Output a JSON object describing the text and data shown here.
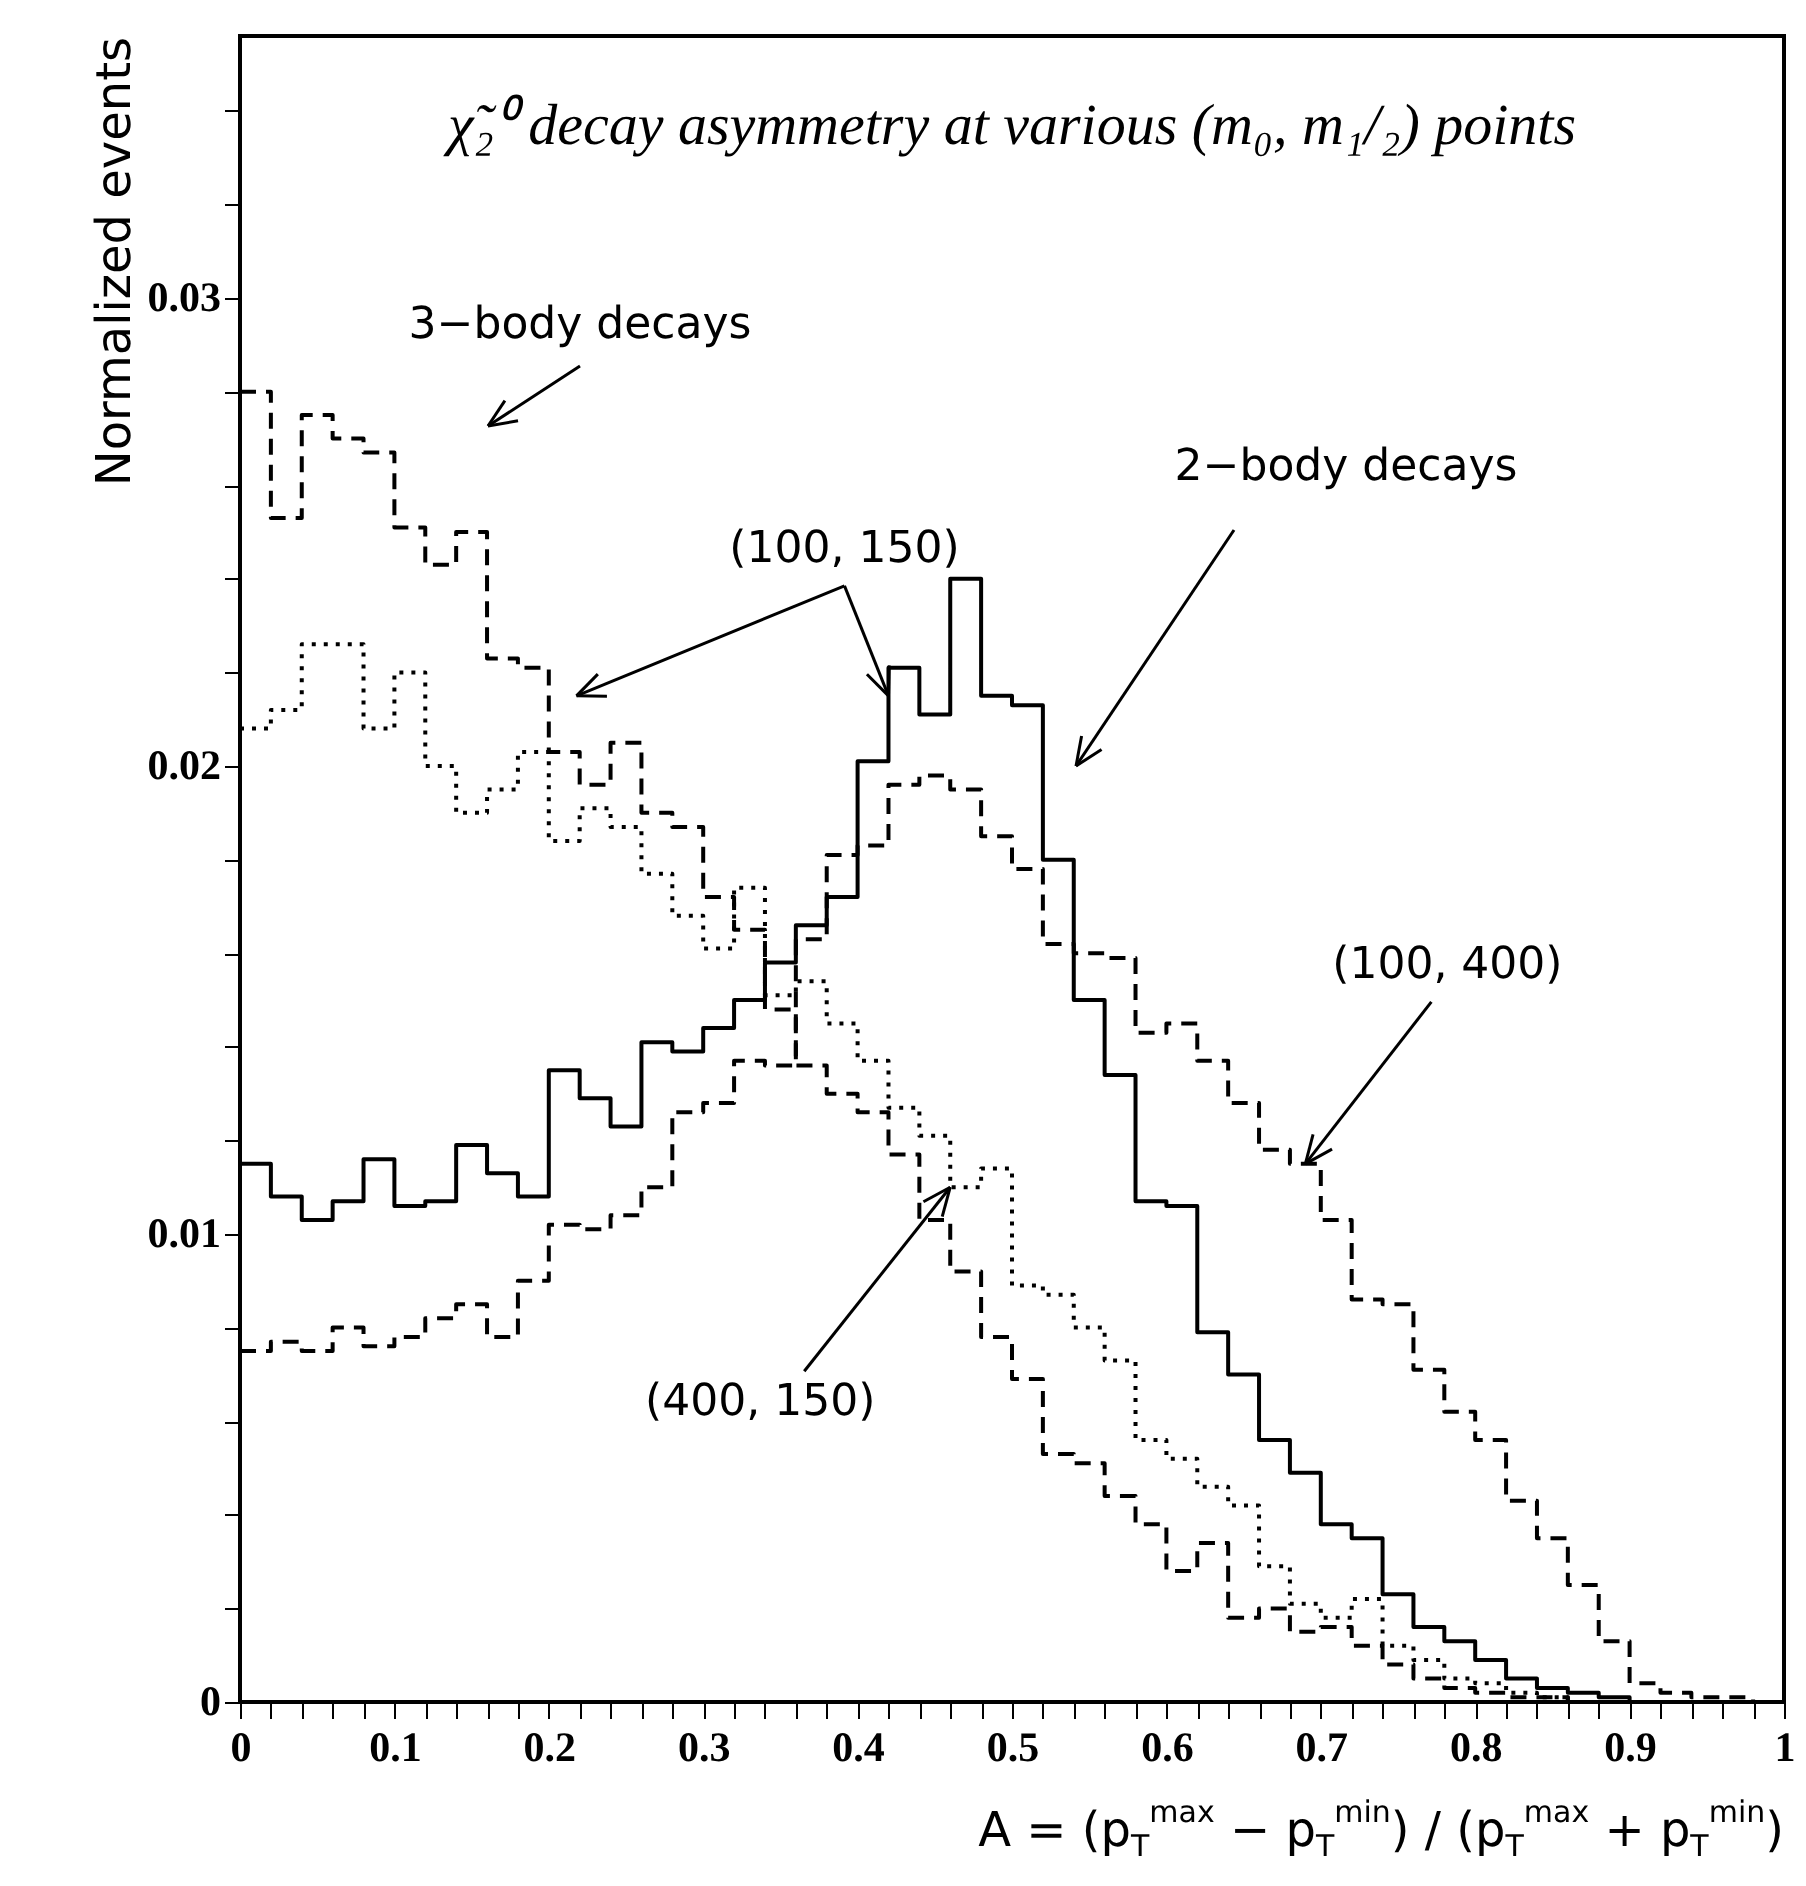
{
  "chart_data": {
    "type": "step",
    "title": "χ̃₂⁰ decay asymmetry at various (m₀, m₁/₂) points",
    "xlabel": "A = (p$_{T}$$^{max}$ − p$_{T}$$^{min}$) / (p$_{T}$$^{max}$ + p$_{T}$$^{min}$)",
    "ylabel": "Normalized events",
    "x": [
      0,
      0.02,
      0.04,
      0.06,
      0.08,
      0.1,
      0.12,
      0.14,
      0.16,
      0.18,
      0.2,
      0.22,
      0.24,
      0.26,
      0.28,
      0.3,
      0.32,
      0.34,
      0.36,
      0.38,
      0.4,
      0.42,
      0.44,
      0.46,
      0.48,
      0.5,
      0.52,
      0.54,
      0.56,
      0.58,
      0.6,
      0.62,
      0.64,
      0.66,
      0.68,
      0.7,
      0.72,
      0.74,
      0.76,
      0.78,
      0.8,
      0.82,
      0.84,
      0.86,
      0.88,
      0.9,
      0.92,
      0.94,
      0.96,
      0.98
    ],
    "series": [
      {
        "color": "#000000",
        "line_style": "solid",
        "values": [
          0.0115,
          0.0108,
          0.0103,
          0.0107,
          0.0116,
          0.0106,
          0.0107,
          0.0119,
          0.0113,
          0.0108,
          0.0135,
          0.0129,
          0.0123,
          0.0141,
          0.0139,
          0.0144,
          0.015,
          0.0158,
          0.0166,
          0.0172,
          0.0201,
          0.0221,
          0.0211,
          0.024,
          0.0215,
          0.0213,
          0.018,
          0.015,
          0.0134,
          0.0107,
          0.0106,
          0.0079,
          0.007,
          0.0056,
          0.0049,
          0.0038,
          0.0035,
          0.0023,
          0.0016,
          0.0013,
          0.0009,
          0.0005,
          0.0003,
          0.0002,
          0.0001,
          0,
          0,
          0,
          0,
          0
        ]
      },
      {
        "color": "#000000",
        "line_style": "dashed",
        "values": [
          0.028,
          0.0253,
          0.0275,
          0.027,
          0.0267,
          0.0251,
          0.0243,
          0.025,
          0.0223,
          0.0221,
          0.0203,
          0.0196,
          0.0205,
          0.019,
          0.0187,
          0.0172,
          0.0165,
          0.0148,
          0.0136,
          0.013,
          0.0126,
          0.0117,
          0.0103,
          0.0092,
          0.0078,
          0.0069,
          0.0053,
          0.0051,
          0.0044,
          0.0038,
          0.0028,
          0.0034,
          0.0018,
          0.002,
          0.0015,
          0.0016,
          0.0012,
          0.0008,
          0.0005,
          0.0003,
          0.0002,
          0.0001,
          0.0001,
          0,
          0,
          0,
          0,
          0,
          0,
          0
        ]
      },
      {
        "color": "#000000",
        "line_style": "dotted",
        "values": [
          0.0208,
          0.0212,
          0.0226,
          0.0226,
          0.0208,
          0.022,
          0.02,
          0.019,
          0.0195,
          0.0203,
          0.0184,
          0.0191,
          0.0187,
          0.0177,
          0.0168,
          0.0161,
          0.0174,
          0.0151,
          0.0154,
          0.0145,
          0.0137,
          0.0127,
          0.0121,
          0.011,
          0.0114,
          0.0089,
          0.0087,
          0.008,
          0.0073,
          0.0056,
          0.0052,
          0.0046,
          0.0042,
          0.0029,
          0.0021,
          0.0018,
          0.0022,
          0.0012,
          0.0009,
          0.0005,
          0.0004,
          0.0002,
          0.0001,
          0,
          0,
          0,
          0,
          0,
          0,
          0
        ]
      },
      {
        "color": "#000000",
        "line_style": "dashed",
        "values": [
          0.0075,
          0.0077,
          0.0075,
          0.008,
          0.0076,
          0.0078,
          0.0082,
          0.0085,
          0.0078,
          0.009,
          0.0102,
          0.0101,
          0.0104,
          0.011,
          0.0126,
          0.0128,
          0.0137,
          0.0136,
          0.0163,
          0.0181,
          0.0183,
          0.0196,
          0.0198,
          0.0195,
          0.0185,
          0.0178,
          0.0162,
          0.016,
          0.0159,
          0.0143,
          0.0145,
          0.0137,
          0.0128,
          0.0118,
          0.0115,
          0.0103,
          0.0086,
          0.0085,
          0.0071,
          0.0062,
          0.0056,
          0.0043,
          0.0035,
          0.0025,
          0.0013,
          0.0004,
          0.0002,
          0.0001,
          0.0001,
          0
        ]
      }
    ],
    "xlim": [
      0,
      1
    ],
    "xticks": [
      0,
      {
        "value": 0.02,
        "label": null
      },
      {
        "value": 0.04,
        "label": null
      },
      {
        "value": 0.06,
        "label": null
      },
      {
        "value": 0.08,
        "label": null
      },
      0.1,
      {
        "value": 0.12,
        "label": null
      },
      {
        "value": 0.14,
        "label": null
      },
      {
        "value": 0.16,
        "label": null
      },
      {
        "value": 0.18,
        "label": null
      },
      0.2,
      {
        "value": 0.22,
        "label": null
      },
      {
        "value": 0.24,
        "label": null
      },
      {
        "value": 0.26,
        "label": null
      },
      {
        "value": 0.28,
        "label": null
      },
      0.3,
      {
        "value": 0.32,
        "label": null
      },
      {
        "value": 0.34,
        "label": null
      },
      {
        "value": 0.36,
        "label": null
      },
      {
        "value": 0.38,
        "label": null
      },
      0.4,
      {
        "value": 0.42,
        "label": null
      },
      {
        "value": 0.44,
        "label": null
      },
      {
        "value": 0.46,
        "label": null
      },
      {
        "value": 0.48,
        "label": null
      },
      0.5,
      {
        "value": 0.52,
        "label": null
      },
      {
        "value": 0.54,
        "label": null
      },
      {
        "value": 0.56,
        "label": null
      },
      {
        "value": 0.58,
        "label": null
      },
      0.6,
      {
        "value": 0.62,
        "label": null
      },
      {
        "value": 0.64,
        "label": null
      },
      {
        "value": 0.66,
        "label": null
      },
      {
        "value": 0.68,
        "label": null
      },
      0.7,
      {
        "value": 0.72,
        "label": null
      },
      {
        "value": 0.74,
        "label": null
      },
      {
        "value": 0.76,
        "label": null
      },
      {
        "value": 0.78,
        "label": null
      },
      0.8,
      {
        "value": 0.82,
        "label": null
      },
      {
        "value": 0.84,
        "label": null
      },
      {
        "value": 0.86,
        "label": null
      },
      {
        "value": 0.88,
        "label": null
      },
      0.9,
      {
        "value": 0.92,
        "label": null
      },
      {
        "value": 0.94,
        "label": null
      },
      {
        "value": 0.96,
        "label": null
      },
      {
        "value": 0.98,
        "label": null
      },
      1
    ],
    "ylim": [
      0,
      0.0356
    ],
    "yticks": [
      0,
      {
        "value": 0.002,
        "label": null
      },
      {
        "value": 0.004,
        "label": null
      },
      {
        "value": 0.006,
        "label": null
      },
      {
        "value": 0.008,
        "label": null
      },
      0.01,
      {
        "value": 0.012,
        "label": null
      },
      {
        "value": 0.014,
        "label": null
      },
      {
        "value": 0.016,
        "label": null
      },
      {
        "value": 0.018,
        "label": null
      },
      0.02,
      {
        "value": 0.022,
        "label": null
      },
      {
        "value": 0.024,
        "label": null
      },
      {
        "value": 0.026,
        "label": null
      },
      {
        "value": 0.028,
        "label": null
      },
      0.03,
      {
        "value": 0.032,
        "label": null
      },
      {
        "value": 0.034,
        "label": null
      }
    ],
    "annotations": [
      "3−body decays",
      "2−body decays",
      {
        "text": "(100, 150)",
        "x": 0.42,
        "y": 0.0215
      },
      {
        "text": "(100, 400)",
        "x": 0.69,
        "y": 0.0115
      },
      {
        "text": "(400, 150)",
        "x": 0.46,
        "y": 0.011
      }
    ],
    "grid": false
  }
}
